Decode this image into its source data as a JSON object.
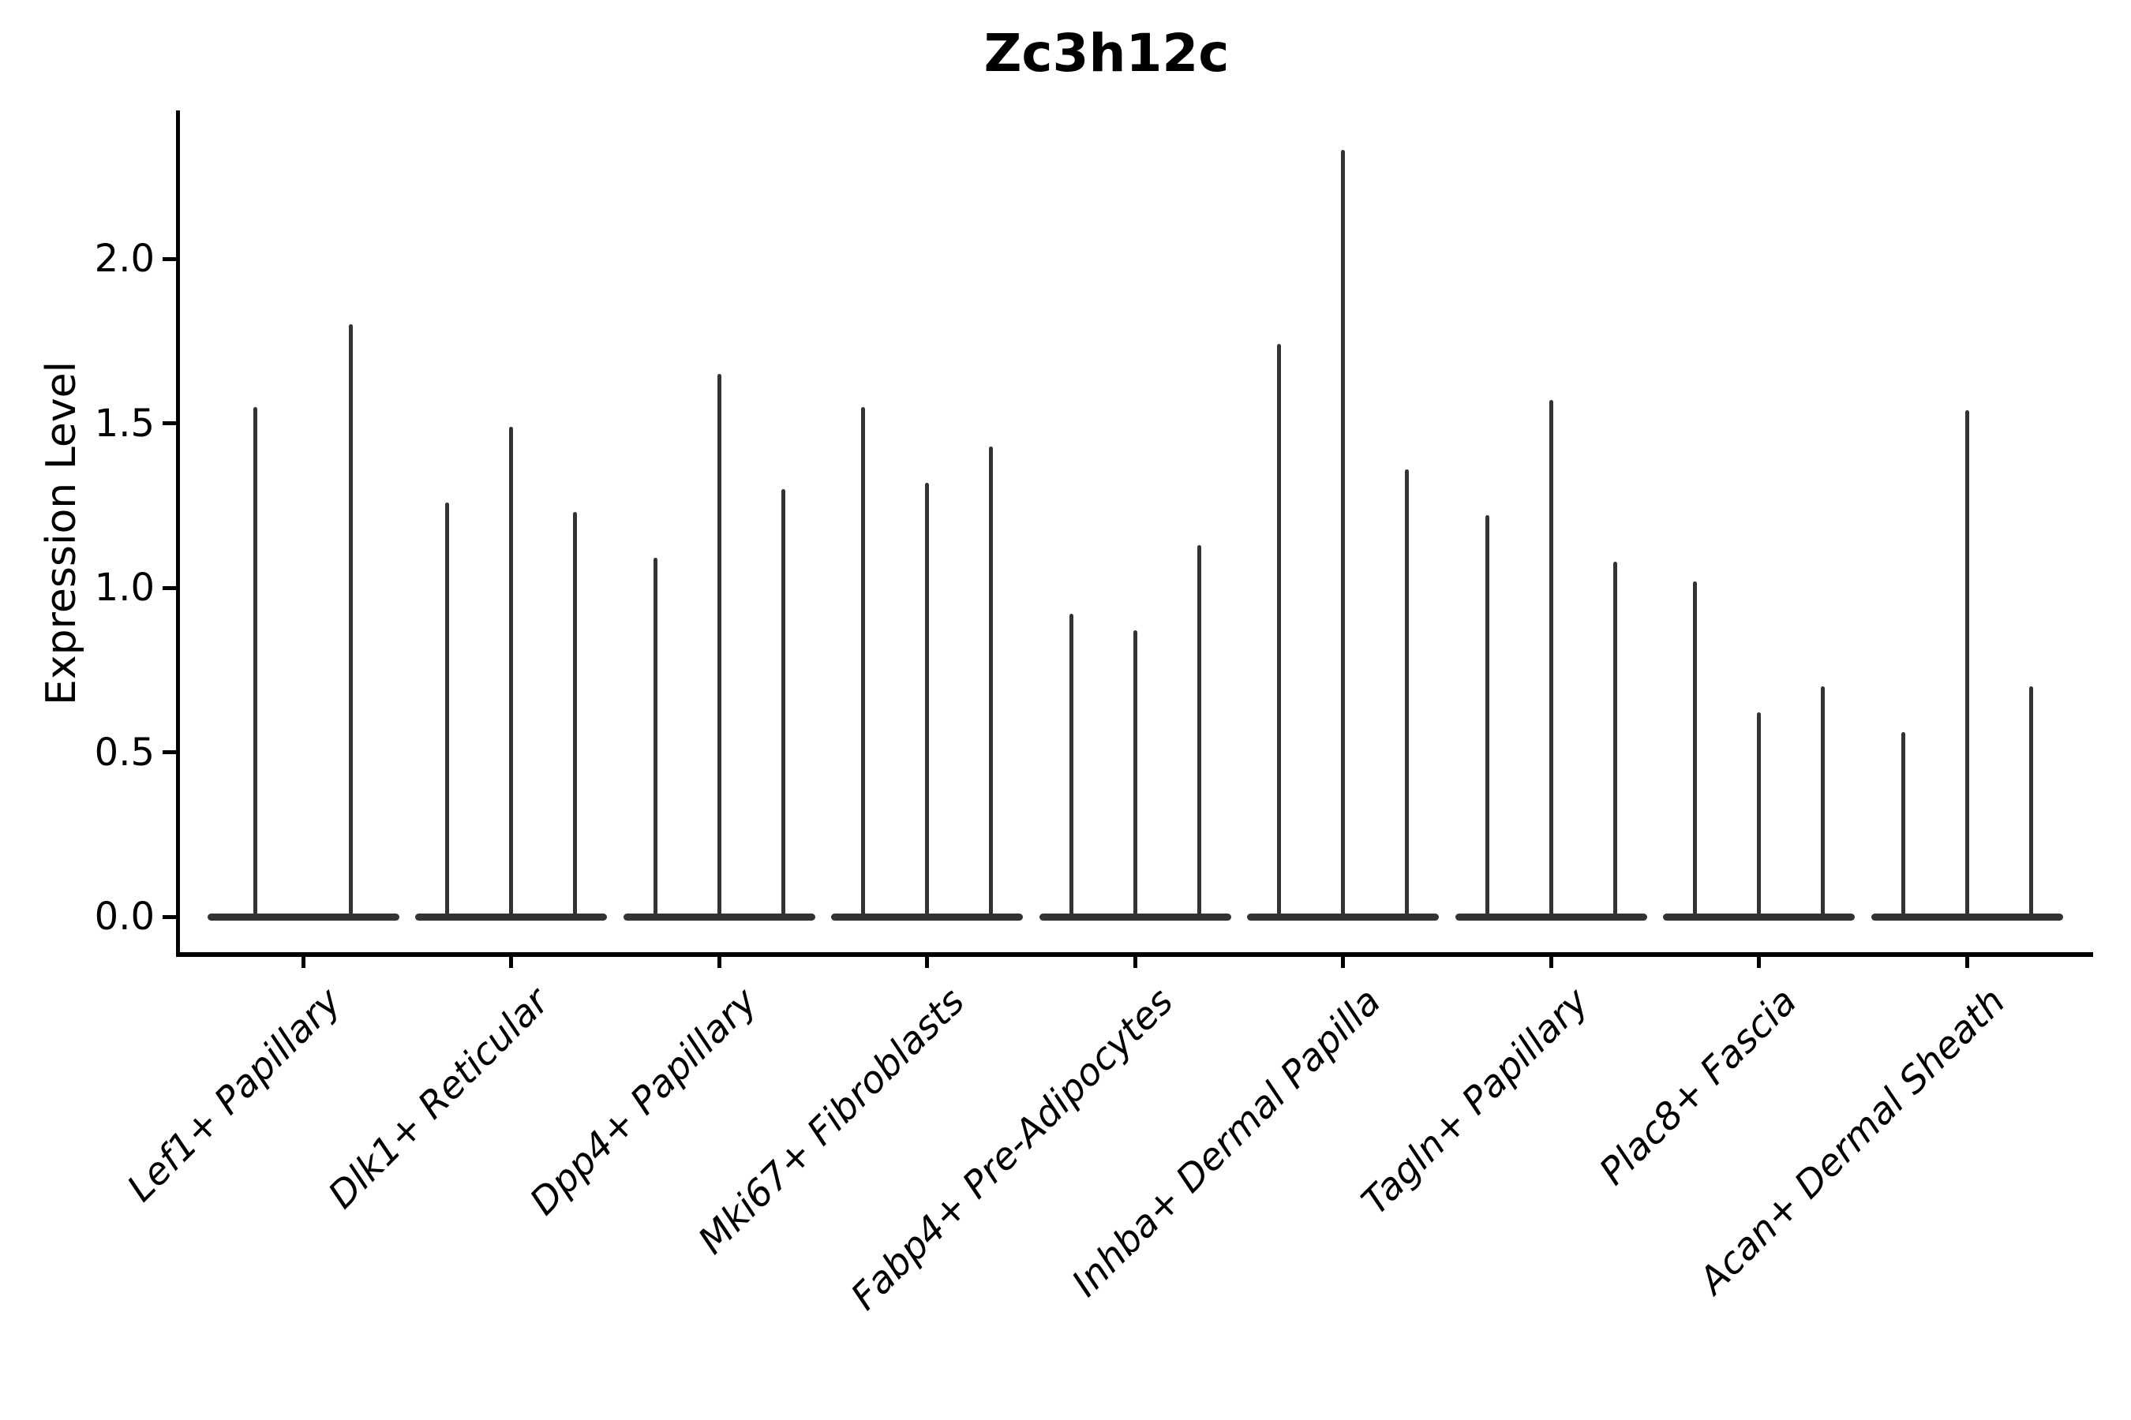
{
  "chart_data": {
    "type": "violin",
    "title": "Zc3h12c",
    "ylabel": "Expression Level",
    "xlabel": "",
    "grid": false,
    "legend_position": "none",
    "ylim": [
      -0.12,
      2.45
    ],
    "ytick_labels": [
      "0.0",
      "0.5",
      "1.0",
      "1.5",
      "2.0"
    ],
    "ytick_values": [
      0.0,
      0.5,
      1.0,
      1.5,
      2.0
    ],
    "xtick_label_style": "italic, rotated 45deg, right-anchored",
    "violin_color": "#333333",
    "axis_color": "#000000",
    "description": "Violin plot of Zc3h12c expression; nearly all density lies at 0 so each violin renders as a wide flat base with a thin spike up to its maximum expression value. Each cell-type group contains 2-3 side-by-side violins.",
    "categories": [
      "Lef1+ Papillary",
      "Dlk1+ Reticular",
      "Dpp4+ Papillary",
      "Mki67+ Fibroblasts",
      "Fabp4+ Pre-Adipocytes",
      "Inhba+ Dermal Papilla",
      "Tagln+ Papillary",
      "Plac8+ Fascia",
      "Acan+ Dermal Sheath"
    ],
    "series": [
      {
        "category": "Lef1+ Papillary",
        "spike_maxima": [
          1.55,
          1.8
        ]
      },
      {
        "category": "Dlk1+ Reticular",
        "spike_maxima": [
          1.26,
          1.49,
          1.23
        ]
      },
      {
        "category": "Dpp4+ Papillary",
        "spike_maxima": [
          1.09,
          1.65,
          1.3
        ]
      },
      {
        "category": "Mki67+ Fibroblasts",
        "spike_maxima": [
          1.55,
          1.32,
          1.43
        ]
      },
      {
        "category": "Fabp4+ Pre-Adipocytes",
        "spike_maxima": [
          0.92,
          0.87,
          1.13
        ]
      },
      {
        "category": "Inhba+ Dermal Papilla",
        "spike_maxima": [
          1.74,
          2.33,
          1.36
        ]
      },
      {
        "category": "Tagln+ Papillary",
        "spike_maxima": [
          1.22,
          1.57,
          1.08
        ]
      },
      {
        "category": "Plac8+ Fascia",
        "spike_maxima": [
          1.02,
          0.62,
          0.7
        ]
      },
      {
        "category": "Acan+ Dermal Sheath",
        "spike_maxima": [
          0.56,
          1.54,
          0.7
        ]
      }
    ]
  }
}
